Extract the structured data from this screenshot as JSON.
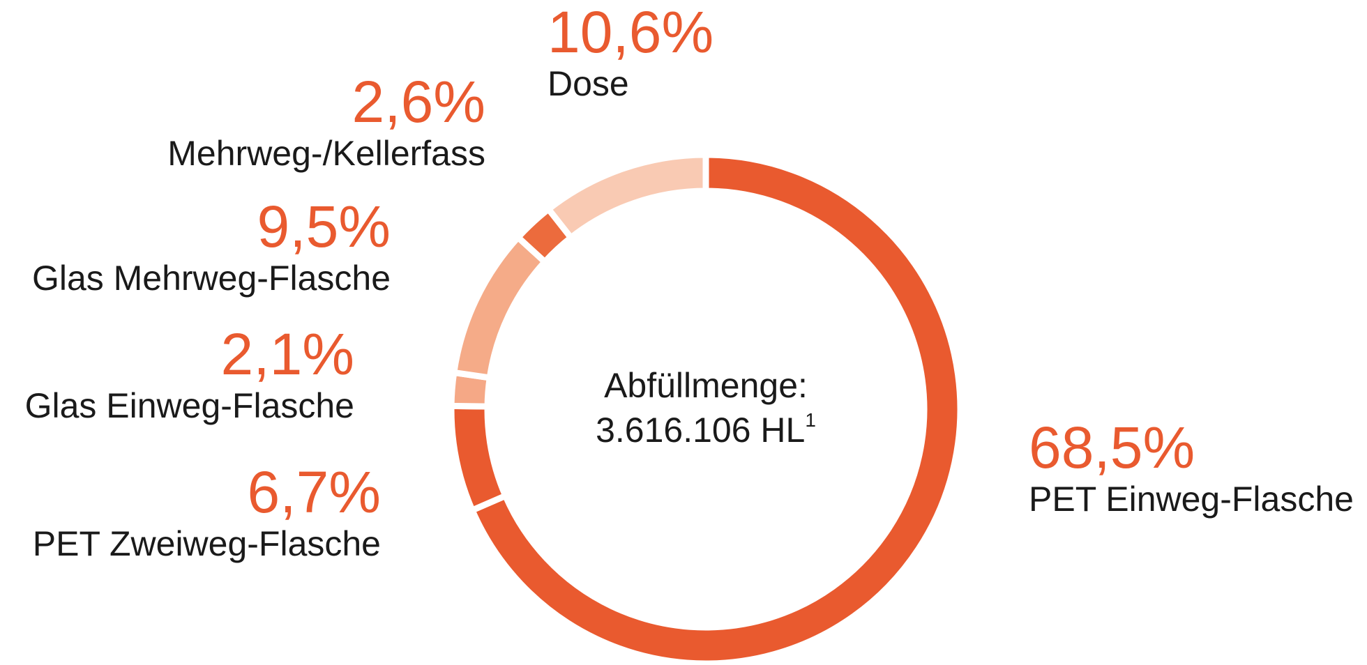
{
  "chart_data": {
    "type": "donut",
    "center_text": [
      "Abfüllmenge:",
      "3.616.106 HL"
    ],
    "center_footnote": "1",
    "categories": [
      "PET Einweg-Flasche",
      "PET Zweiweg-Flasche",
      "Glas Einweg-Flasche",
      "Glas Mehrweg-Flasche",
      "Mehrweg-/Kellerfass",
      "Dose"
    ],
    "values": [
      68.5,
      6.7,
      2.1,
      9.5,
      2.6,
      10.6
    ],
    "value_labels": [
      "68,5%",
      "6,7%",
      "2,1%",
      "9,5%",
      "2,6%",
      "10,6%"
    ],
    "colors": [
      "#e95a2f",
      "#e95a2f",
      "#f5a886",
      "#f5ab88",
      "#ec6b3d",
      "#f9cab3"
    ]
  }
}
